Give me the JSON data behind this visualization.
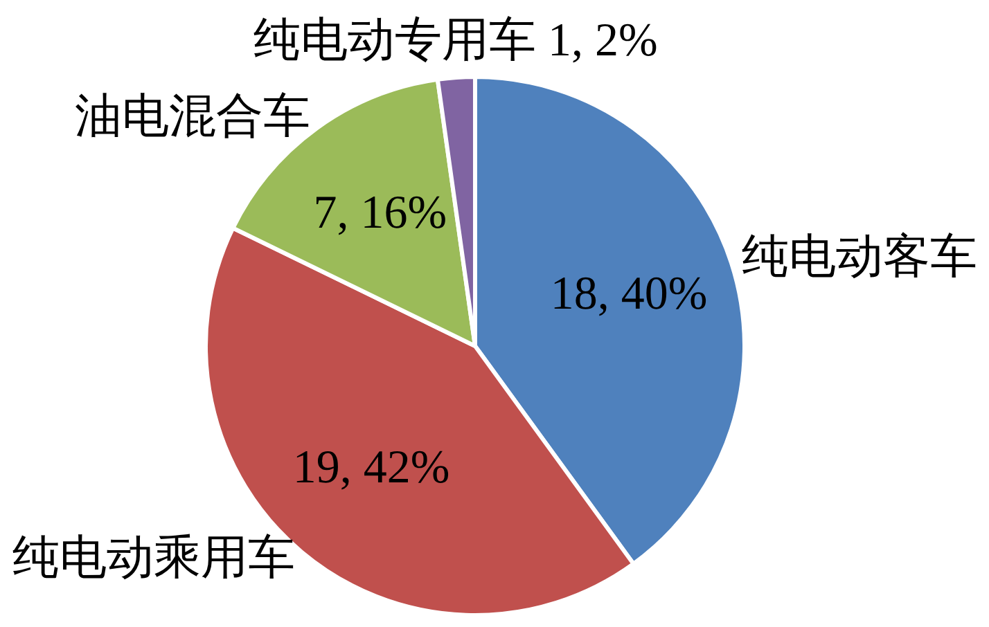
{
  "chart_data": {
    "type": "pie",
    "categories": [
      "纯电动客车",
      "纯电动乘用车",
      "油电混合车",
      "纯电动专用车"
    ],
    "values": [
      18,
      19,
      7,
      1
    ],
    "colors": [
      "#4f81bd",
      "#c0504d",
      "#9bbb59",
      "#8064a2"
    ],
    "value_labels": [
      "18, 40%",
      "19, 42%",
      "7, 16%",
      "1, 2%"
    ]
  }
}
